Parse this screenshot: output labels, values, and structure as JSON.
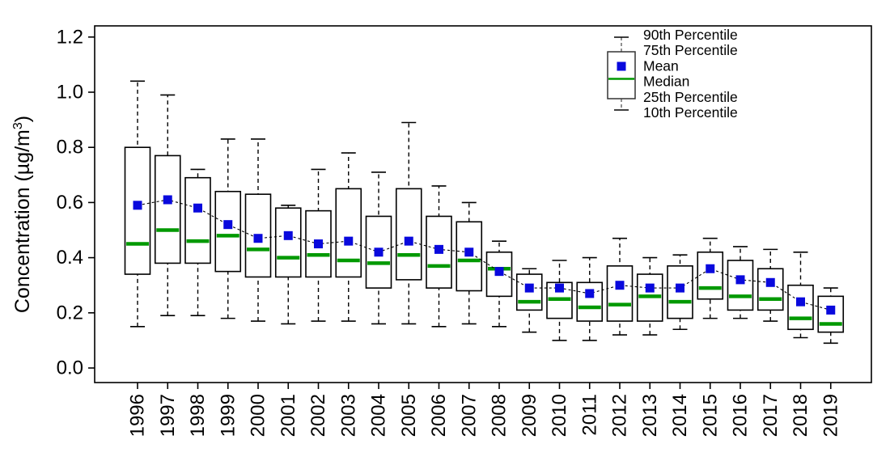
{
  "chart_data": {
    "type": "boxplot",
    "title": "",
    "xlabel": "",
    "ylabel": {
      "text": "Concentration (µg/m",
      "sup": "3",
      "close": ")"
    },
    "ylim": [
      0.0,
      1.2
    ],
    "yticks": [
      0.0,
      0.2,
      0.4,
      0.6,
      0.8,
      1.0,
      1.2
    ],
    "grid": false,
    "legend_position": "top-right",
    "legend": [
      "90th Percentile",
      "75th Percentile",
      "Mean",
      "Median",
      "25th Percentile",
      "10th Percentile"
    ],
    "colors": {
      "mean_marker": "#0909dd",
      "median_line": "#009900",
      "box_stroke": "#000000",
      "whisker": "#000000",
      "mean_trend_line": "#000000",
      "background": "#ffffff"
    },
    "categories": [
      "1996",
      "1997",
      "1998",
      "1999",
      "2000",
      "2001",
      "2002",
      "2003",
      "2004",
      "2005",
      "2006",
      "2007",
      "2008",
      "2009",
      "2010",
      "2011",
      "2012",
      "2013",
      "2014",
      "2015",
      "2016",
      "2017",
      "2018",
      "2019"
    ],
    "series": [
      {
        "name": "90th Percentile",
        "key": "p90",
        "values": [
          1.04,
          0.99,
          0.72,
          0.83,
          0.83,
          0.59,
          0.72,
          0.78,
          0.71,
          0.89,
          0.66,
          0.6,
          0.46,
          0.36,
          0.39,
          0.4,
          0.47,
          0.4,
          0.41,
          0.47,
          0.44,
          0.43,
          0.42,
          0.29
        ]
      },
      {
        "name": "75th Percentile",
        "key": "p75",
        "values": [
          0.8,
          0.77,
          0.69,
          0.64,
          0.63,
          0.58,
          0.57,
          0.65,
          0.55,
          0.65,
          0.55,
          0.53,
          0.42,
          0.34,
          0.31,
          0.31,
          0.37,
          0.34,
          0.37,
          0.42,
          0.39,
          0.36,
          0.3,
          0.26
        ]
      },
      {
        "name": "Mean",
        "key": "mean",
        "values": [
          0.59,
          0.61,
          0.58,
          0.52,
          0.47,
          0.48,
          0.45,
          0.46,
          0.42,
          0.46,
          0.43,
          0.42,
          0.35,
          0.29,
          0.29,
          0.27,
          0.3,
          0.29,
          0.29,
          0.36,
          0.32,
          0.31,
          0.24,
          0.21
        ]
      },
      {
        "name": "Median",
        "key": "median",
        "values": [
          0.45,
          0.5,
          0.46,
          0.48,
          0.43,
          0.4,
          0.41,
          0.39,
          0.38,
          0.41,
          0.37,
          0.39,
          0.36,
          0.24,
          0.25,
          0.22,
          0.23,
          0.26,
          0.24,
          0.29,
          0.26,
          0.25,
          0.18,
          0.16
        ]
      },
      {
        "name": "25th Percentile",
        "key": "p25",
        "values": [
          0.34,
          0.38,
          0.38,
          0.35,
          0.33,
          0.33,
          0.33,
          0.33,
          0.29,
          0.32,
          0.29,
          0.28,
          0.26,
          0.21,
          0.18,
          0.17,
          0.17,
          0.17,
          0.18,
          0.25,
          0.21,
          0.21,
          0.14,
          0.13
        ]
      },
      {
        "name": "10th Percentile",
        "key": "p10",
        "values": [
          0.15,
          0.19,
          0.19,
          0.18,
          0.17,
          0.16,
          0.17,
          0.17,
          0.16,
          0.16,
          0.15,
          0.16,
          0.15,
          0.13,
          0.1,
          0.1,
          0.12,
          0.12,
          0.14,
          0.18,
          0.18,
          0.17,
          0.11,
          0.09
        ]
      }
    ]
  }
}
